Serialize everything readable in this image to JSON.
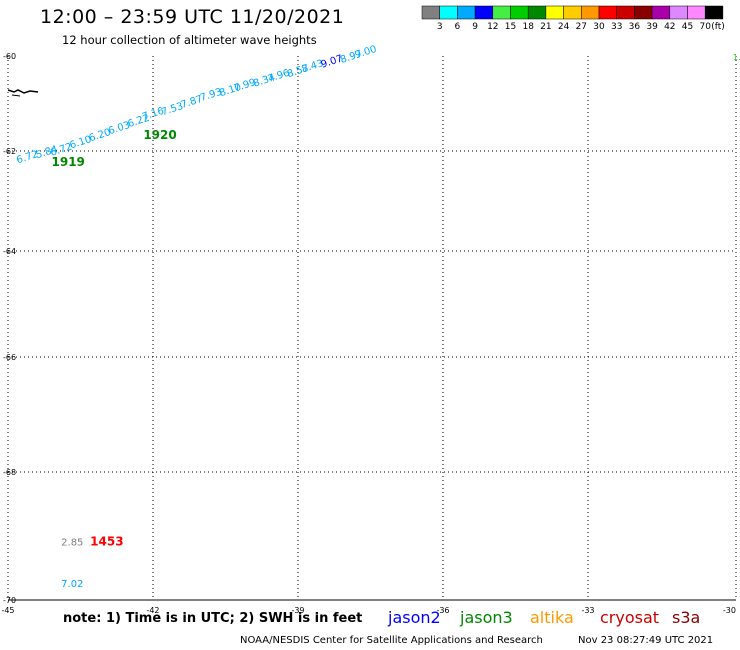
{
  "header": {
    "title": "12:00 – 23:59 UTC 11/20/2021",
    "subtitle": "12 hour collection of altimeter wave heights"
  },
  "colorbar": {
    "labels": [
      "3",
      "6",
      "9",
      "12",
      "15",
      "18",
      "21",
      "24",
      "27",
      "30",
      "33",
      "36",
      "39",
      "42",
      "45",
      "70"
    ],
    "unit": "(ft)",
    "colors": [
      "#808080",
      "#00ffff",
      "#00aaff",
      "#0000ff",
      "#44ee44",
      "#00cc00",
      "#008800",
      "#ffff00",
      "#ffcc00",
      "#ff9900",
      "#ff0000",
      "#cc0000",
      "#880000",
      "#aa00aa",
      "#dd88ff",
      "#ff88ff",
      "#000000"
    ]
  },
  "satellites": [
    {
      "name": "jason2",
      "color": "#0000ff"
    },
    {
      "name": "jason3",
      "color": "#008800"
    },
    {
      "name": "altika",
      "color": "#ff9900"
    },
    {
      "name": "cryosat",
      "color": "#cc0000"
    },
    {
      "name": "s3a",
      "color": "#880000"
    }
  ],
  "footer": {
    "note": "note:  1) Time is in UTC;  2) SWH is in feet",
    "credit": "NOAA/NESDIS Center for Satellite Applications and Research",
    "timestamp": "Nov 23 08:27:49 UTC 2021"
  },
  "chart_data": {
    "type": "scatter",
    "title": "12:00 – 23:59 UTC 11/20/2021",
    "x_ticks": [
      "-45",
      "-42",
      "-39",
      "-36",
      "-33",
      "-30"
    ],
    "y_ticks": [
      "-60",
      "-62",
      "-64",
      "-66",
      "-68",
      "-70"
    ],
    "xlim": [
      -45,
      -30
    ],
    "ylim": [
      -70,
      -60
    ],
    "grid": true,
    "partial_label_right": "1.",
    "track_points": [
      {
        "lon": -44.8,
        "lat": -62.25,
        "label": "6.72",
        "color": "#00aaff"
      },
      {
        "lon": -44.4,
        "lat": -62.15,
        "label": "5.84",
        "color": "#00aaff"
      },
      {
        "lon": -44.1,
        "lat": -62.1,
        "label": "6.72",
        "color": "#00aaff"
      },
      {
        "lon": -43.7,
        "lat": -61.95,
        "label": "6.10",
        "color": "#00aaff"
      },
      {
        "lon": -43.3,
        "lat": -61.8,
        "label": "6.20",
        "color": "#00aaff"
      },
      {
        "lon": -42.9,
        "lat": -61.65,
        "label": "6.03",
        "color": "#00aaff"
      },
      {
        "lon": -42.5,
        "lat": -61.5,
        "label": "6.22",
        "color": "#00aaff"
      },
      {
        "lon": -42.2,
        "lat": -61.35,
        "label": "7.16",
        "color": "#00aaff"
      },
      {
        "lon": -41.8,
        "lat": -61.25,
        "label": "7.53",
        "color": "#00aaff"
      },
      {
        "lon": -41.4,
        "lat": -61.1,
        "label": "7.87",
        "color": "#00aaff"
      },
      {
        "lon": -41.0,
        "lat": -60.95,
        "label": "7.93",
        "color": "#00aaff"
      },
      {
        "lon": -40.6,
        "lat": -60.85,
        "label": "8.10",
        "color": "#00aaff"
      },
      {
        "lon": -40.3,
        "lat": -60.75,
        "label": "7.99",
        "color": "#00aaff"
      },
      {
        "lon": -39.9,
        "lat": -60.65,
        "label": "8.34",
        "color": "#00aaff"
      },
      {
        "lon": -39.6,
        "lat": -60.55,
        "label": "7.96",
        "color": "#00aaff"
      },
      {
        "lon": -39.2,
        "lat": -60.45,
        "label": "8.57",
        "color": "#00aaff"
      },
      {
        "lon": -38.9,
        "lat": -60.35,
        "label": "8.43",
        "color": "#00aaff"
      },
      {
        "lon": -38.5,
        "lat": -60.25,
        "label": "9.07",
        "color": "#0000ff"
      },
      {
        "lon": -38.1,
        "lat": -60.15,
        "label": "8.97",
        "color": "#00aaff"
      },
      {
        "lon": -37.8,
        "lat": -60.05,
        "label": "9.00",
        "color": "#00aaff"
      }
    ],
    "other_points": [
      {
        "lon": -43.9,
        "lat": -69.15,
        "label": "2.85",
        "color": "#808080"
      },
      {
        "lon": -43.9,
        "lat": -69.8,
        "label": "7.02",
        "color": "#00aaff"
      }
    ],
    "time_labels": [
      {
        "lon": -44.1,
        "lat": -62.3,
        "label": "1919",
        "color": "#008800"
      },
      {
        "lon": -42.2,
        "lat": -61.75,
        "label": "1920",
        "color": "#008800"
      },
      {
        "lon": -43.3,
        "lat": -69.15,
        "label": "1453",
        "color": "#ff0000"
      }
    ]
  }
}
